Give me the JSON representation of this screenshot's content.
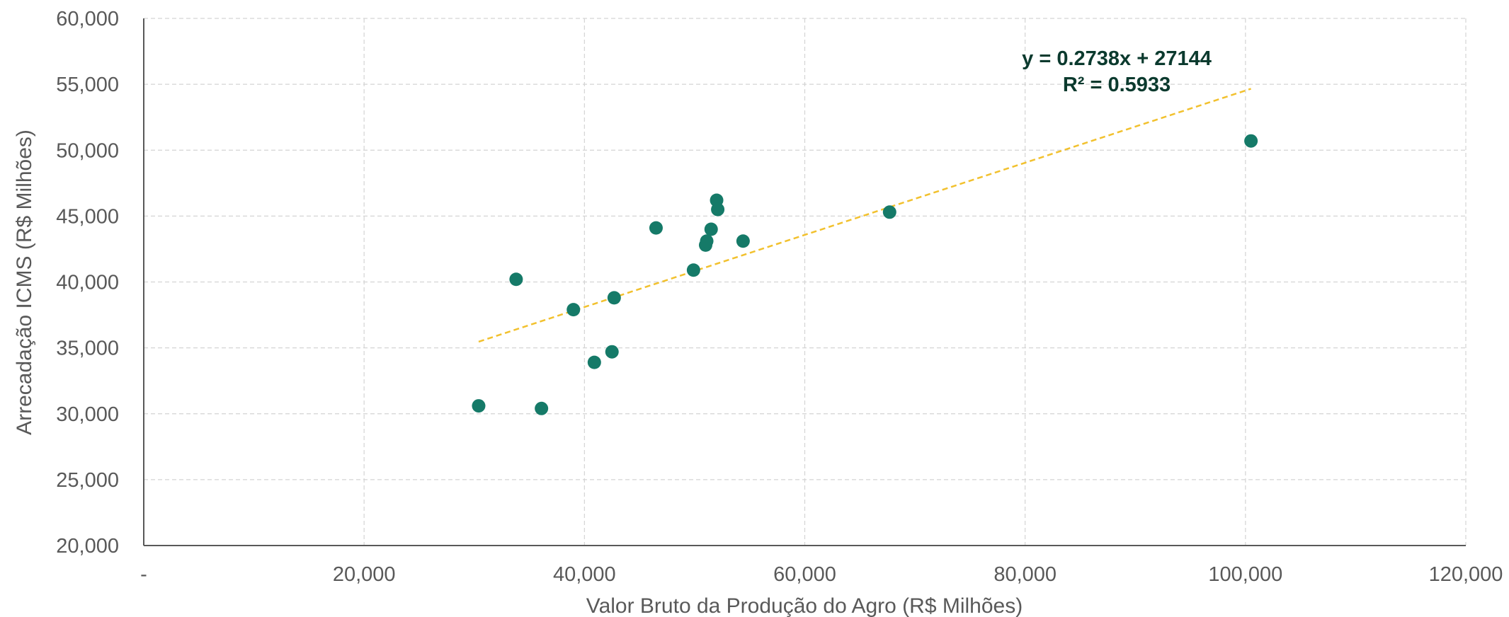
{
  "chart_data": {
    "type": "scatter",
    "xlabel": "Valor Bruto da Produção do Agro (R$ Milhões)",
    "ylabel": "Arrecadação ICMS (R$ Milhões)",
    "xlim": [
      0,
      120000
    ],
    "ylim": [
      20000,
      60000
    ],
    "x_ticks": [
      {
        "value": 0,
        "label": "-"
      },
      {
        "value": 20000,
        "label": "20,000"
      },
      {
        "value": 40000,
        "label": "40,000"
      },
      {
        "value": 60000,
        "label": "60,000"
      },
      {
        "value": 80000,
        "label": "80,000"
      },
      {
        "value": 100000,
        "label": "100,000"
      },
      {
        "value": 120000,
        "label": "120,000"
      }
    ],
    "y_ticks": [
      {
        "value": 20000,
        "label": "20,000"
      },
      {
        "value": 25000,
        "label": "25,000"
      },
      {
        "value": 30000,
        "label": "30,000"
      },
      {
        "value": 35000,
        "label": "35,000"
      },
      {
        "value": 40000,
        "label": "40,000"
      },
      {
        "value": 45000,
        "label": "45,000"
      },
      {
        "value": 50000,
        "label": "50,000"
      },
      {
        "value": 55000,
        "label": "55,000"
      },
      {
        "value": 60000,
        "label": "60,000"
      }
    ],
    "grid": true,
    "points": [
      {
        "x": 30400,
        "y": 30600
      },
      {
        "x": 33800,
        "y": 40200
      },
      {
        "x": 36100,
        "y": 30400
      },
      {
        "x": 39000,
        "y": 37900
      },
      {
        "x": 40900,
        "y": 33900
      },
      {
        "x": 42500,
        "y": 34700
      },
      {
        "x": 42700,
        "y": 38800
      },
      {
        "x": 46500,
        "y": 44100
      },
      {
        "x": 49900,
        "y": 40900
      },
      {
        "x": 51000,
        "y": 42800
      },
      {
        "x": 51100,
        "y": 43100
      },
      {
        "x": 51500,
        "y": 44000
      },
      {
        "x": 52000,
        "y": 46200
      },
      {
        "x": 52100,
        "y": 45500
      },
      {
        "x": 54400,
        "y": 43100
      },
      {
        "x": 67700,
        "y": 45300
      },
      {
        "x": 100500,
        "y": 50700
      }
    ],
    "trendline": {
      "slope": 0.2738,
      "intercept": 27144,
      "x_range": [
        30400,
        100500
      ],
      "equation_label": "y = 0.2738x + 27144",
      "r2_label": "R² = 0.5933"
    },
    "colors": {
      "points": "#157a68",
      "trendline": "#f2c12e",
      "grid": "#d4d4d4",
      "axis": "#595959"
    }
  }
}
